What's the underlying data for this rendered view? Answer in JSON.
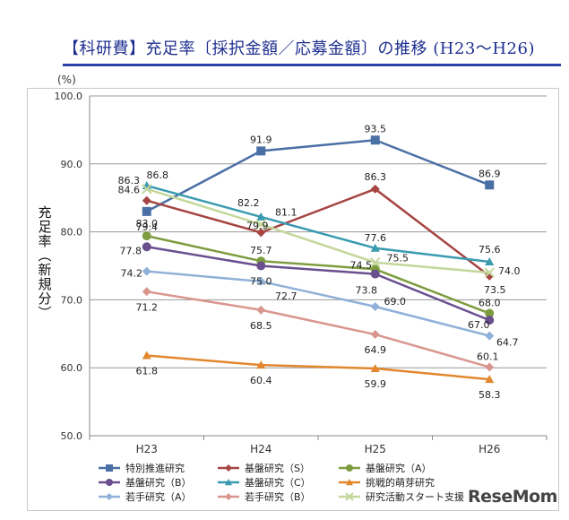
{
  "header": {
    "title": "【科研費】充足率〔採択金額／応募金額〕の推移 (H23～H26)"
  },
  "watermark": "ReseMom",
  "chart_data": {
    "type": "line",
    "y_unit": "(%)",
    "ylabel": "充足率（新規分）",
    "xlabel": "",
    "ylim": [
      50.0,
      100.0
    ],
    "y_ticks": [
      "50.0",
      "60.0",
      "70.0",
      "80.0",
      "90.0",
      "100.0"
    ],
    "categories": [
      "H23",
      "H24",
      "H25",
      "H26"
    ],
    "grid": true,
    "legend_position": "bottom",
    "series": [
      {
        "name": "特別推進研究",
        "values": [
          83.0,
          91.9,
          93.5,
          86.9
        ],
        "labels": [
          "83.0",
          "91.9",
          "93.5",
          "86.9"
        ],
        "color": "#4a6fa5",
        "marker": "square"
      },
      {
        "name": "基盤研究（S）",
        "values": [
          84.6,
          79.9,
          86.3,
          73.5
        ],
        "labels": [
          "84.6",
          "79.9",
          "86.3",
          "73.5"
        ],
        "color": "#a64542",
        "marker": "diamond"
      },
      {
        "name": "基盤研究（A）",
        "values": [
          79.4,
          75.7,
          74.5,
          68.0
        ],
        "labels": [
          "79.4",
          "75.7",
          "74.5",
          "68.0"
        ],
        "color": "#7d9c3f",
        "marker": "circle"
      },
      {
        "name": "基盤研究（B）",
        "values": [
          77.8,
          75.0,
          73.8,
          67.0
        ],
        "labels": [
          "77.8",
          "75.0",
          "73.8",
          "67.0"
        ],
        "color": "#6a4f8f",
        "marker": "circle"
      },
      {
        "name": "基盤研究（C）",
        "values": [
          86.8,
          82.2,
          77.6,
          75.6
        ],
        "labels": [
          "86.8",
          "82.2",
          "77.6",
          "75.6"
        ],
        "color": "#3a9ab0",
        "marker": "triangle"
      },
      {
        "name": "挑戦的萌芽研究",
        "values": [
          61.8,
          60.4,
          59.9,
          58.3
        ],
        "labels": [
          "61.8",
          "60.4",
          "59.9",
          "58.3"
        ],
        "color": "#e3872e",
        "marker": "triangle"
      },
      {
        "name": "若手研究（A）",
        "values": [
          74.2,
          72.7,
          69.0,
          64.7
        ],
        "labels": [
          "74.2",
          "72.7",
          "69.0",
          "64.7"
        ],
        "color": "#8fb0d8",
        "marker": "diamond"
      },
      {
        "name": "若手研究（B）",
        "values": [
          71.2,
          68.5,
          64.9,
          60.1
        ],
        "labels": [
          "71.2",
          "68.5",
          "64.9",
          "60.1"
        ],
        "color": "#d9968f",
        "marker": "diamond"
      },
      {
        "name": "研究活動スタート支援",
        "values": [
          86.3,
          81.1,
          75.5,
          74.0
        ],
        "labels": [
          "86.3",
          "81.1",
          "75.5",
          "74.0"
        ],
        "color": "#c4d79b",
        "marker": "x"
      }
    ]
  }
}
